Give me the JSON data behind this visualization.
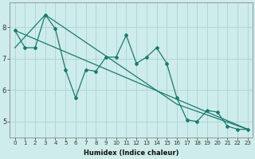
{
  "xlabel": "Humidex (Indice chaleur)",
  "background_color": "#ceecea",
  "grid_color": "#aed8d4",
  "line_color": "#1a7a6e",
  "series_zigzag": [
    7.9,
    7.35,
    7.35,
    8.4,
    7.95,
    6.65,
    5.75,
    6.65,
    6.6,
    7.05,
    7.05,
    7.75,
    6.85,
    7.05,
    7.35,
    6.85,
    5.75,
    5.05,
    5.0,
    5.35,
    5.3,
    4.85,
    4.75,
    4.75
  ],
  "series_trend1_x": [
    0,
    23
  ],
  "series_trend1_y": [
    7.9,
    4.75
  ],
  "series_trend2_x": [
    0,
    3,
    16,
    23
  ],
  "series_trend2_y": [
    7.35,
    8.4,
    5.55,
    4.75
  ],
  "ylim": [
    4.5,
    8.8
  ],
  "xlim": [
    -0.5,
    23.5
  ],
  "yticks": [
    5,
    6,
    7,
    8
  ],
  "xticks": [
    0,
    1,
    2,
    3,
    4,
    5,
    6,
    7,
    8,
    9,
    10,
    11,
    12,
    13,
    14,
    15,
    16,
    17,
    18,
    19,
    20,
    21,
    22,
    23
  ],
  "tick_fontsize_x": 5,
  "tick_fontsize_y": 6,
  "xlabel_fontsize": 6
}
